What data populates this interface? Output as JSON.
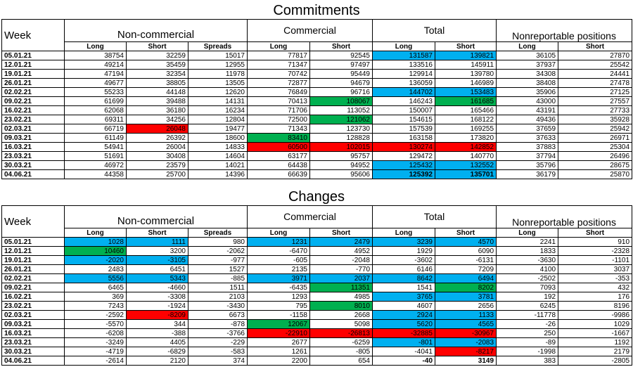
{
  "commitments": {
    "title": "Commitments",
    "week_label": "Week",
    "groups": [
      "Non-commercial",
      "Commercial",
      "Total",
      "Nonreportable positions"
    ],
    "subheaders": [
      "Long",
      "Short",
      "Spreads",
      "Long",
      "Short",
      "Long",
      "Short",
      "Long",
      "Short"
    ],
    "rows": [
      {
        "week": "05.01.21",
        "values": [
          "38754",
          "32259",
          "15017",
          "77817",
          "92545",
          "131587",
          "139821",
          "36105",
          "27870"
        ],
        "hl": [
          "",
          "",
          "",
          "",
          "",
          "blue",
          "blue",
          "",
          ""
        ]
      },
      {
        "week": "12.01.21",
        "values": [
          "49214",
          "35459",
          "12955",
          "71347",
          "97497",
          "133516",
          "145911",
          "37937",
          "25542"
        ],
        "hl": [
          "",
          "",
          "",
          "",
          "",
          "",
          "",
          "",
          ""
        ]
      },
      {
        "week": "19.01.21",
        "values": [
          "47194",
          "32354",
          "11978",
          "70742",
          "95449",
          "129914",
          "139780",
          "34308",
          "24441"
        ],
        "hl": [
          "",
          "",
          "",
          "",
          "",
          "",
          "",
          "",
          ""
        ]
      },
      {
        "week": "26.01.21",
        "values": [
          "49677",
          "38805",
          "13505",
          "72877",
          "94679",
          "136059",
          "146989",
          "38408",
          "27478"
        ],
        "hl": [
          "",
          "",
          "",
          "",
          "",
          "",
          "",
          "",
          ""
        ]
      },
      {
        "week": "02.02.21",
        "values": [
          "55233",
          "44148",
          "12620",
          "76849",
          "96716",
          "144702",
          "153483",
          "35906",
          "27125"
        ],
        "hl": [
          "",
          "",
          "",
          "",
          "",
          "blue",
          "blue",
          "",
          ""
        ]
      },
      {
        "week": "09.02.21",
        "values": [
          "61699",
          "39488",
          "14131",
          "70413",
          "108067",
          "146243",
          "161685",
          "43000",
          "27557"
        ],
        "hl": [
          "",
          "",
          "",
          "",
          "green",
          "",
          "green",
          "",
          ""
        ]
      },
      {
        "week": "16.02.21",
        "values": [
          "62068",
          "36180",
          "16234",
          "71706",
          "113052",
          "150007",
          "165466",
          "43191",
          "27733"
        ],
        "hl": [
          "",
          "",
          "",
          "",
          "",
          "",
          "",
          "",
          ""
        ]
      },
      {
        "week": "23.02.21",
        "values": [
          "69311",
          "34256",
          "12804",
          "72500",
          "121062",
          "154615",
          "168122",
          "49436",
          "35928"
        ],
        "hl": [
          "",
          "",
          "",
          "",
          "green",
          "",
          "",
          "",
          ""
        ]
      },
      {
        "week": "02.03.21",
        "values": [
          "66719",
          "26048",
          "19477",
          "71343",
          "123730",
          "157539",
          "169255",
          "37659",
          "25942"
        ],
        "hl": [
          "",
          "red",
          "",
          "",
          "",
          "",
          "",
          "",
          ""
        ]
      },
      {
        "week": "09.03.21",
        "values": [
          "61149",
          "26392",
          "18600",
          "83410",
          "128828",
          "163158",
          "173820",
          "37633",
          "26971"
        ],
        "hl": [
          "",
          "",
          "",
          "green",
          "",
          "",
          "",
          "",
          ""
        ]
      },
      {
        "week": "16.03.21",
        "values": [
          "54941",
          "26004",
          "14833",
          "60500",
          "102015",
          "130274",
          "142852",
          "37883",
          "25304"
        ],
        "hl": [
          "",
          "",
          "",
          "red",
          "red",
          "red",
          "red",
          "",
          ""
        ]
      },
      {
        "week": "23.03.21",
        "values": [
          "51691",
          "30408",
          "14604",
          "63177",
          "95757",
          "129472",
          "140770",
          "37794",
          "26496"
        ],
        "hl": [
          "",
          "",
          "",
          "",
          "",
          "",
          "",
          "",
          ""
        ]
      },
      {
        "week": "30.03.21",
        "values": [
          "46972",
          "23579",
          "14021",
          "64438",
          "94952",
          "125432",
          "132552",
          "35796",
          "28675"
        ],
        "hl": [
          "",
          "",
          "",
          "",
          "",
          "blue",
          "blue",
          "",
          ""
        ]
      },
      {
        "week": "04.06.21",
        "values": [
          "44358",
          "25700",
          "14396",
          "66639",
          "95606",
          "125392",
          "135701",
          "36179",
          "25870"
        ],
        "hl": [
          "",
          "",
          "",
          "",
          "",
          "blue",
          "blue",
          "",
          ""
        ],
        "bold_from": 5
      }
    ]
  },
  "changes": {
    "title": "Changes",
    "week_label": "Week",
    "groups": [
      "Non-commercial",
      "Commercial",
      "Total",
      "Nonreportable positions"
    ],
    "subheaders": [
      "Long",
      "Short",
      "Spreads",
      "Long",
      "Short",
      "Long",
      "Short",
      "Long",
      "Short"
    ],
    "rows": [
      {
        "week": "05.01.21",
        "values": [
          "1028",
          "1111",
          "980",
          "1231",
          "2479",
          "3239",
          "4570",
          "2241",
          "910"
        ],
        "hl": [
          "blue",
          "blue",
          "",
          "blue",
          "blue",
          "blue",
          "blue",
          "",
          ""
        ]
      },
      {
        "week": "12.01.21",
        "values": [
          "10460",
          "3200",
          "-2062",
          "-6470",
          "4952",
          "1929",
          "6090",
          "1833",
          "-2328"
        ],
        "hl": [
          "green",
          "",
          "",
          "",
          "",
          "",
          "",
          "",
          ""
        ]
      },
      {
        "week": "19.01.21",
        "values": [
          "-2020",
          "-3105",
          "-977",
          "-605",
          "-2048",
          "-3602",
          "-6131",
          "-3630",
          "-1101"
        ],
        "hl": [
          "blue",
          "blue",
          "",
          "",
          "",
          "",
          "",
          "",
          ""
        ]
      },
      {
        "week": "26.01.21",
        "values": [
          "2483",
          "6451",
          "1527",
          "2135",
          "-770",
          "6146",
          "7209",
          "4100",
          "3037"
        ],
        "hl": [
          "",
          "",
          "",
          "",
          "",
          "",
          "",
          "",
          ""
        ]
      },
      {
        "week": "02.02.21",
        "values": [
          "5556",
          "5343",
          "-885",
          "3971",
          "2037",
          "8642",
          "6494",
          "-2502",
          "-353"
        ],
        "hl": [
          "blue",
          "blue",
          "",
          "blue",
          "blue",
          "blue",
          "blue",
          "",
          ""
        ]
      },
      {
        "week": "09.02.21",
        "values": [
          "6465",
          "-4660",
          "1511",
          "-6435",
          "11351",
          "1541",
          "8202",
          "7093",
          "432"
        ],
        "hl": [
          "",
          "",
          "",
          "",
          "green",
          "",
          "green",
          "",
          ""
        ]
      },
      {
        "week": "16.02.21",
        "values": [
          "369",
          "-3308",
          "2103",
          "1293",
          "4985",
          "3765",
          "3781",
          "192",
          "176"
        ],
        "hl": [
          "",
          "",
          "",
          "",
          "",
          "blue",
          "blue",
          "",
          ""
        ]
      },
      {
        "week": "23.02.21",
        "values": [
          "7243",
          "-1924",
          "-3430",
          "795",
          "8010",
          "4607",
          "2656",
          "6245",
          "8196"
        ],
        "hl": [
          "",
          "",
          "",
          "",
          "green",
          "",
          "",
          "",
          ""
        ]
      },
      {
        "week": "02.03.21",
        "values": [
          "-2592",
          "-8209",
          "6673",
          "-1158",
          "2668",
          "2924",
          "1133",
          "-11778",
          "-9986"
        ],
        "hl": [
          "",
          "red",
          "",
          "",
          "",
          "blue",
          "blue",
          "",
          ""
        ]
      },
      {
        "week": "09.03.21",
        "values": [
          "-5570",
          "344",
          "-878",
          "12067",
          "5098",
          "5620",
          "4565",
          "-26",
          "1029"
        ],
        "hl": [
          "",
          "",
          "",
          "green",
          "",
          "blue",
          "blue",
          "",
          ""
        ]
      },
      {
        "week": "16.03.21",
        "values": [
          "-6208",
          "-388",
          "-3766",
          "-22910",
          "-26813",
          "-32885",
          "-30967",
          "250",
          "-1667"
        ],
        "hl": [
          "",
          "",
          "",
          "red",
          "red",
          "red",
          "red",
          "",
          ""
        ]
      },
      {
        "week": "23.03.21",
        "values": [
          "-3249",
          "4405",
          "-229",
          "2677",
          "-6259",
          "-801",
          "-2083",
          "-89",
          "1192"
        ],
        "hl": [
          "",
          "",
          "",
          "",
          "",
          "blue",
          "blue",
          "",
          ""
        ]
      },
      {
        "week": "30.03.21",
        "values": [
          "-4719",
          "-6829",
          "-583",
          "1261",
          "-805",
          "-4041",
          "-8217",
          "-1998",
          "2179"
        ],
        "hl": [
          "",
          "",
          "",
          "",
          "",
          "",
          "red",
          "",
          ""
        ]
      },
      {
        "week": "04.06.21",
        "values": [
          "-2614",
          "2120",
          "374",
          "2200",
          "654",
          "-40",
          "3149",
          "383",
          "-2805"
        ],
        "hl": [
          "",
          "",
          "",
          "",
          "",
          "",
          "",
          "",
          ""
        ],
        "bold_from": 5
      }
    ]
  },
  "colors": {
    "blue": "#00b0f0",
    "green": "#00b050",
    "red": "#ff0000"
  }
}
